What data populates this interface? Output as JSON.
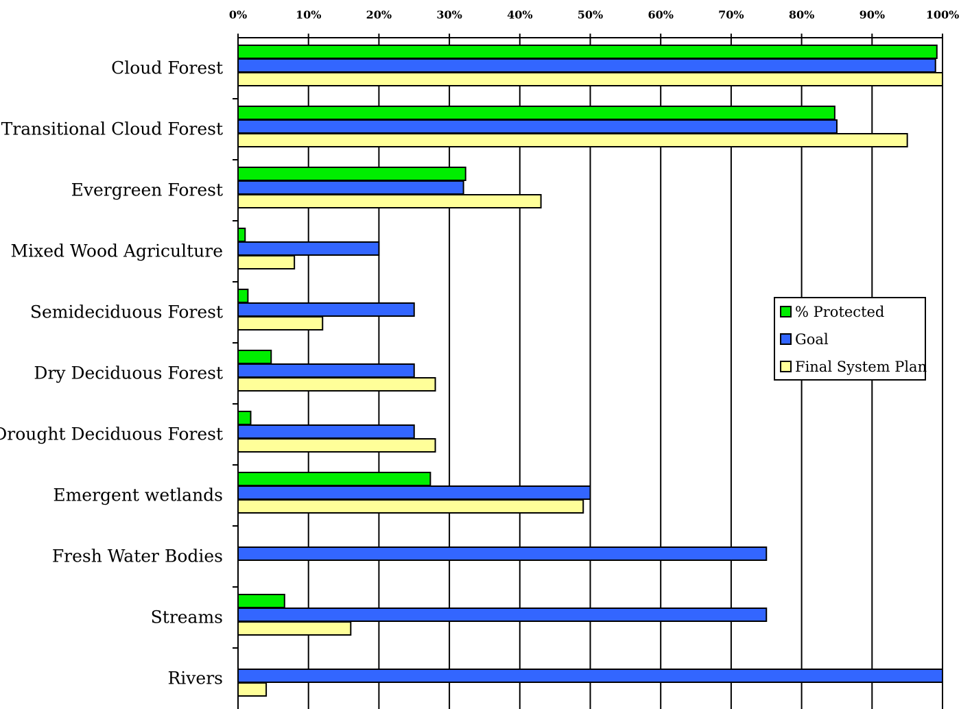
{
  "chart_data": {
    "type": "bar",
    "orientation": "horizontal",
    "categories": [
      "Cloud Forest",
      "Transitional Cloud Forest",
      "Evergreen Forest",
      "Mixed Wood Agriculture",
      "Semideciduous Forest",
      "Dry Deciduous Forest",
      "Drought Deciduous Forest",
      "Emergent wetlands",
      "Fresh Water Bodies",
      "Streams",
      "Rivers"
    ],
    "series": [
      {
        "name": "% Protected",
        "color": "#00ee00",
        "values": [
          99.2,
          84.7,
          32.3,
          1.0,
          1.4,
          4.7,
          1.8,
          27.3,
          0,
          6.6,
          0
        ]
      },
      {
        "name": "Goal",
        "color": "#3366ff",
        "values": [
          99,
          85,
          32,
          20,
          25,
          25,
          25,
          50,
          75,
          75,
          100
        ]
      },
      {
        "name": "Final System Plan",
        "color": "#ffff99",
        "values": [
          100,
          95,
          43,
          8,
          12,
          28,
          28,
          49,
          0,
          16,
          4
        ]
      }
    ],
    "xlim": [
      0,
      100
    ],
    "xticks": [
      "0%",
      "10%",
      "20%",
      "30%",
      "40%",
      "50%",
      "60%",
      "70%",
      "80%",
      "90%",
      "100%"
    ],
    "x_axis_position": "top",
    "grid": "vertical",
    "legend_position": "right",
    "title": "",
    "xlabel": "",
    "ylabel": ""
  }
}
